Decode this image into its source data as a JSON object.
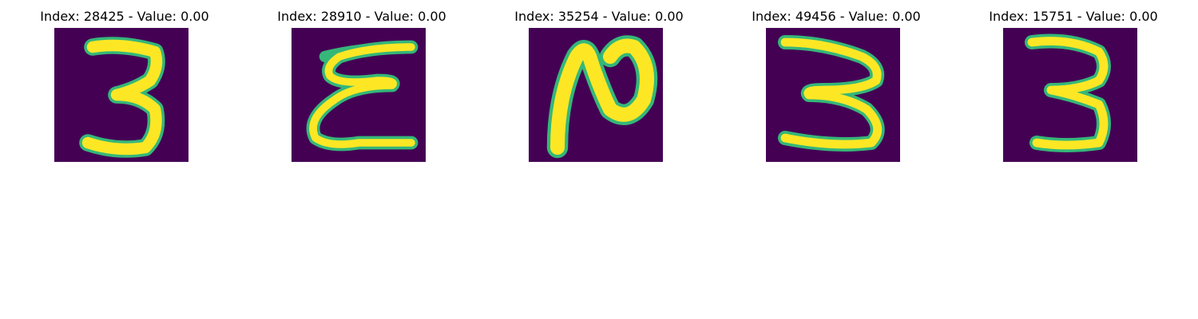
{
  "colors": {
    "background": "#440154",
    "stroke_main": "#fde725",
    "stroke_edge": "#35b779",
    "stroke_mid": "#21918c"
  },
  "panels": [
    {
      "title": "Index: 28425 - Value: 0.00",
      "digit_shape": "three-closed"
    },
    {
      "title": "Index: 28910 - Value: 0.00",
      "digit_shape": "epsilon-3"
    },
    {
      "title": "Index: 35254 - Value: 0.00",
      "digit_shape": "rotated-2"
    },
    {
      "title": "Index: 49456 - Value: 0.00",
      "digit_shape": "three-wide"
    },
    {
      "title": "Index: 15751 - Value: 0.00",
      "digit_shape": "three-narrow"
    }
  ]
}
